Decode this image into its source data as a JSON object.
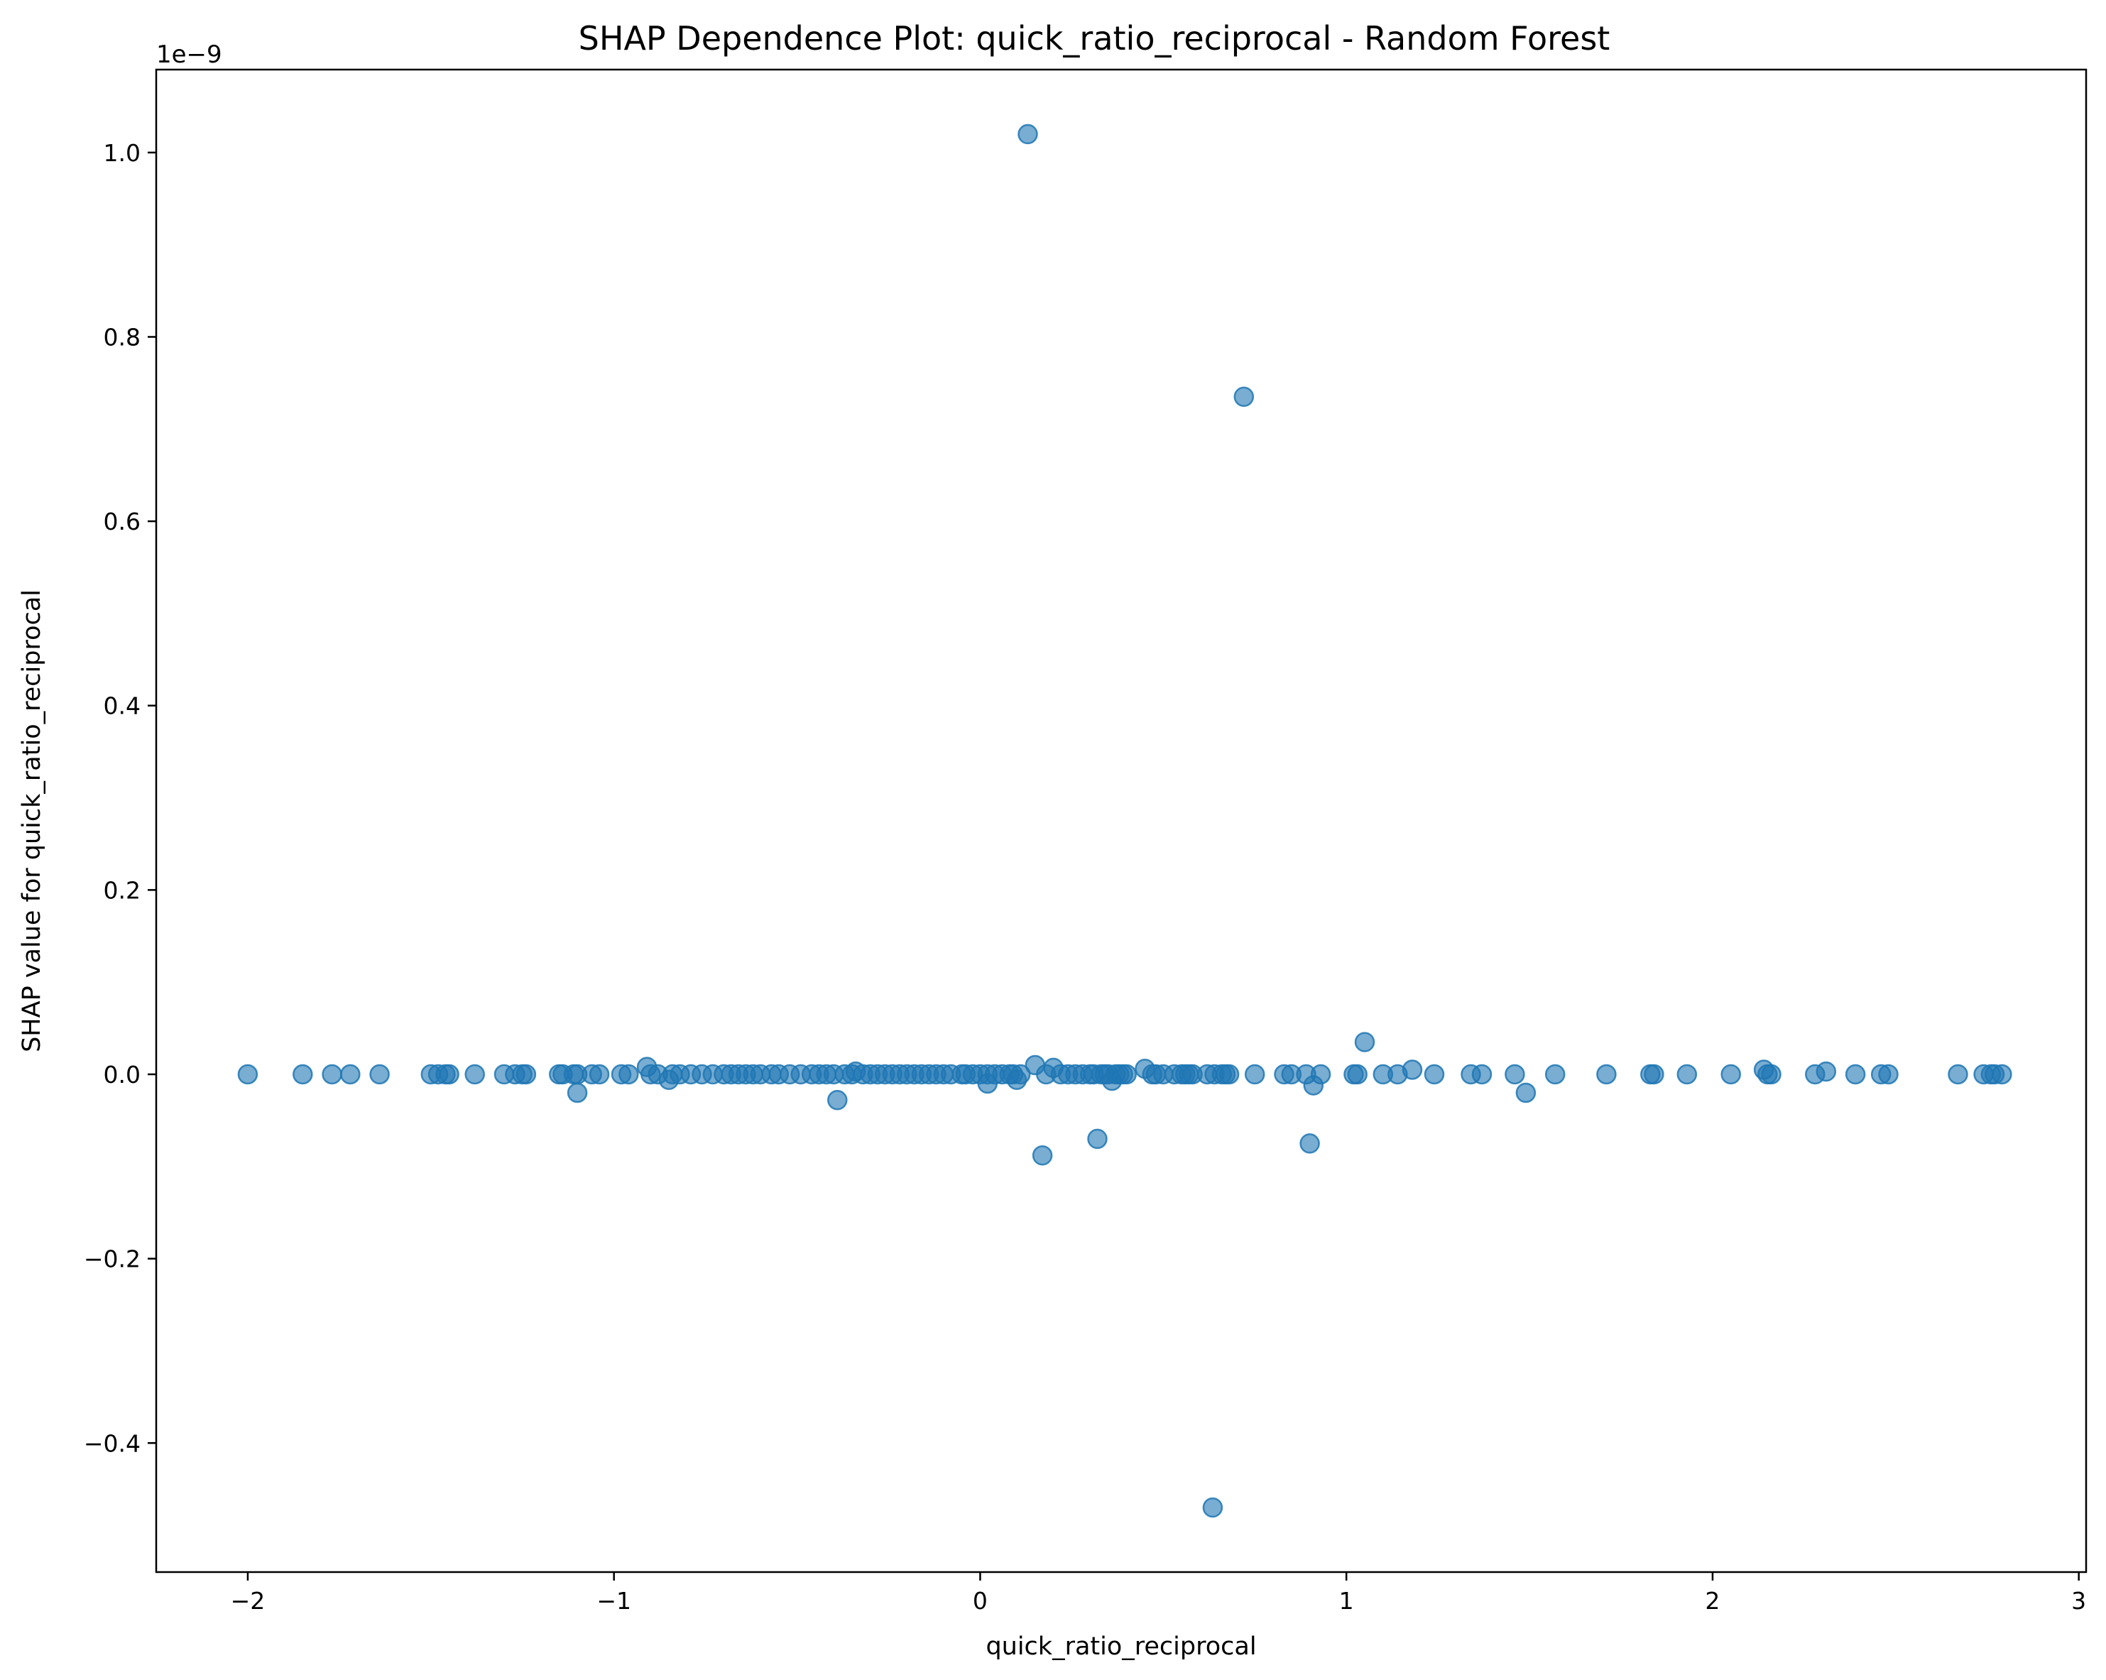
{
  "chart_data": {
    "type": "scatter",
    "title": "SHAP Dependence Plot: quick_ratio_reciprocal - Random Forest",
    "xlabel": "quick_ratio_reciprocal",
    "ylabel": "SHAP value for quick_ratio_reciprocal",
    "y_offset_label": "1e−9",
    "y_scale_factor": 1e-09,
    "xlim": [
      -2.25,
      3.02
    ],
    "ylim": [
      -0.54,
      1.09
    ],
    "x_ticks": [
      {
        "value": -2,
        "label": "−2"
      },
      {
        "value": -1,
        "label": "−1"
      },
      {
        "value": 0,
        "label": "0"
      },
      {
        "value": 1,
        "label": "1"
      },
      {
        "value": 2,
        "label": "2"
      },
      {
        "value": 3,
        "label": "3"
      }
    ],
    "y_ticks": [
      {
        "value": -0.4,
        "label": "−0.4"
      },
      {
        "value": -0.2,
        "label": "−0.2"
      },
      {
        "value": 0.0,
        "label": "0.0"
      },
      {
        "value": 0.2,
        "label": "0.2"
      },
      {
        "value": 0.4,
        "label": "0.4"
      },
      {
        "value": 0.6,
        "label": "0.6"
      },
      {
        "value": 0.8,
        "label": "0.8"
      },
      {
        "value": 1.0,
        "label": "1.0"
      }
    ],
    "grid": false,
    "legend": "none",
    "marker_color": "#1f77b4",
    "marker_alpha": 0.6,
    "points": [
      [
        0.13,
        1.02
      ],
      [
        0.72,
        0.735
      ],
      [
        0.635,
        -0.47
      ],
      [
        0.17,
        -0.088
      ],
      [
        0.32,
        -0.07
      ],
      [
        0.9,
        -0.075
      ],
      [
        1.05,
        0.035
      ],
      [
        -0.39,
        -0.028
      ],
      [
        -1.1,
        -0.02
      ],
      [
        1.49,
        -0.02
      ],
      [
        0.91,
        -0.012
      ],
      [
        0.02,
        -0.01
      ],
      [
        0.1,
        -0.006
      ],
      [
        0.36,
        -0.007
      ],
      [
        -0.85,
        -0.006
      ],
      [
        0.15,
        0.01
      ],
      [
        0.2,
        0.007
      ],
      [
        0.45,
        0.006
      ],
      [
        1.18,
        0.005
      ],
      [
        2.14,
        0.005
      ],
      [
        -0.91,
        0.008
      ],
      [
        -0.34,
        0.003
      ],
      [
        2.31,
        0.003
      ],
      [
        -2.0,
        0
      ],
      [
        -1.85,
        0
      ],
      [
        -1.77,
        0
      ],
      [
        -1.72,
        0
      ],
      [
        -1.64,
        0
      ],
      [
        -1.5,
        0
      ],
      [
        -1.48,
        0
      ],
      [
        -1.46,
        0
      ],
      [
        -1.45,
        0
      ],
      [
        -1.38,
        0
      ],
      [
        -1.3,
        0
      ],
      [
        -1.27,
        0
      ],
      [
        -1.25,
        0
      ],
      [
        -1.24,
        0
      ],
      [
        -1.15,
        0
      ],
      [
        -1.14,
        0
      ],
      [
        -1.11,
        0
      ],
      [
        -1.1,
        0
      ],
      [
        -1.06,
        0
      ],
      [
        -1.04,
        0
      ],
      [
        -0.98,
        0
      ],
      [
        -0.96,
        0
      ],
      [
        -0.9,
        0
      ],
      [
        -0.88,
        0
      ],
      [
        -0.84,
        0
      ],
      [
        -0.82,
        0
      ],
      [
        -0.79,
        0
      ],
      [
        -0.76,
        0
      ],
      [
        -0.73,
        0
      ],
      [
        -0.7,
        0
      ],
      [
        -0.68,
        0
      ],
      [
        -0.66,
        0
      ],
      [
        -0.64,
        0
      ],
      [
        -0.62,
        0
      ],
      [
        -0.6,
        0
      ],
      [
        -0.57,
        0
      ],
      [
        -0.55,
        0
      ],
      [
        -0.52,
        0
      ],
      [
        -0.49,
        0
      ],
      [
        -0.46,
        0
      ],
      [
        -0.44,
        0
      ],
      [
        -0.42,
        0
      ],
      [
        -0.4,
        0
      ],
      [
        -0.37,
        0
      ],
      [
        -0.35,
        0
      ],
      [
        -0.32,
        0
      ],
      [
        -0.3,
        0
      ],
      [
        -0.28,
        0
      ],
      [
        -0.26,
        0
      ],
      [
        -0.24,
        0
      ],
      [
        -0.22,
        0
      ],
      [
        -0.2,
        0
      ],
      [
        -0.18,
        0
      ],
      [
        -0.16,
        0
      ],
      [
        -0.14,
        0
      ],
      [
        -0.12,
        0
      ],
      [
        -0.1,
        0
      ],
      [
        -0.08,
        0
      ],
      [
        -0.05,
        0
      ],
      [
        -0.04,
        0
      ],
      [
        -0.02,
        0
      ],
      [
        0.0,
        0
      ],
      [
        0.02,
        0
      ],
      [
        0.04,
        0
      ],
      [
        0.06,
        0
      ],
      [
        0.08,
        0
      ],
      [
        0.09,
        0
      ],
      [
        0.11,
        0
      ],
      [
        0.18,
        0
      ],
      [
        0.22,
        0
      ],
      [
        0.24,
        0
      ],
      [
        0.26,
        0
      ],
      [
        0.28,
        0
      ],
      [
        0.3,
        0
      ],
      [
        0.31,
        0
      ],
      [
        0.33,
        0
      ],
      [
        0.34,
        0
      ],
      [
        0.35,
        0
      ],
      [
        0.37,
        0
      ],
      [
        0.38,
        0
      ],
      [
        0.39,
        0
      ],
      [
        0.4,
        0
      ],
      [
        0.47,
        0
      ],
      [
        0.48,
        0
      ],
      [
        0.5,
        0
      ],
      [
        0.53,
        0
      ],
      [
        0.55,
        0
      ],
      [
        0.56,
        0
      ],
      [
        0.57,
        0
      ],
      [
        0.58,
        0
      ],
      [
        0.62,
        0
      ],
      [
        0.64,
        0
      ],
      [
        0.66,
        0
      ],
      [
        0.67,
        0
      ],
      [
        0.68,
        0
      ],
      [
        0.75,
        0
      ],
      [
        0.83,
        0
      ],
      [
        0.85,
        0
      ],
      [
        0.89,
        0
      ],
      [
        0.93,
        0
      ],
      [
        1.02,
        0
      ],
      [
        1.03,
        0
      ],
      [
        1.1,
        0
      ],
      [
        1.14,
        0
      ],
      [
        1.24,
        0
      ],
      [
        1.34,
        0
      ],
      [
        1.37,
        0
      ],
      [
        1.46,
        0
      ],
      [
        1.57,
        0
      ],
      [
        1.71,
        0
      ],
      [
        1.83,
        0
      ],
      [
        1.84,
        0
      ],
      [
        1.93,
        0
      ],
      [
        2.05,
        0
      ],
      [
        2.15,
        0
      ],
      [
        2.16,
        0
      ],
      [
        2.28,
        0
      ],
      [
        2.39,
        0
      ],
      [
        2.46,
        0
      ],
      [
        2.48,
        0
      ],
      [
        2.67,
        0
      ],
      [
        2.74,
        0
      ],
      [
        2.76,
        0
      ],
      [
        2.77,
        0
      ],
      [
        2.79,
        0
      ]
    ]
  }
}
